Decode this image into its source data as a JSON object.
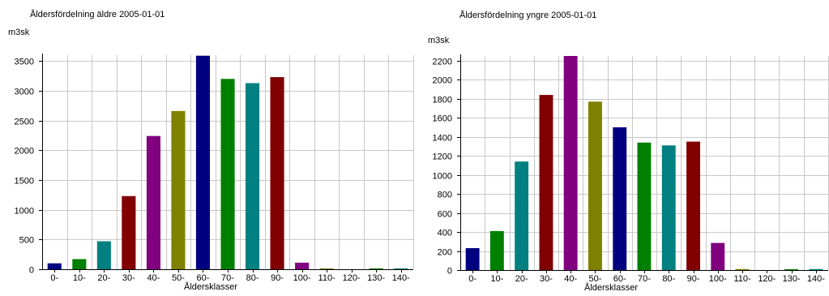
{
  "charts": [
    {
      "title": "Åldersfördelning äldre 2005-01-01",
      "unit": "m3sk",
      "xlabel": "Åldersklasser"
    },
    {
      "title": "Åldersfördelning yngre 2005-01-01",
      "unit": "m3sk",
      "xlabel": "Åldersklasser"
    }
  ],
  "chart_data": [
    {
      "type": "bar",
      "title": "Åldersfördelning äldre 2005-01-01",
      "xlabel": "Åldersklasser",
      "ylabel": "m3sk",
      "categories": [
        "0-",
        "10-",
        "20-",
        "30-",
        "40-",
        "50-",
        "60-",
        "70-",
        "80-",
        "90-",
        "100-",
        "110-",
        "120-",
        "130-",
        "140-"
      ],
      "values": [
        100,
        170,
        470,
        1230,
        2240,
        2660,
        3590,
        3200,
        3130,
        3230,
        110,
        10,
        0,
        5,
        10
      ],
      "ylim": [
        0,
        3600
      ],
      "yticks": [
        0,
        500,
        1000,
        1500,
        2000,
        2500,
        3000,
        3500
      ],
      "grid": true,
      "colors": [
        "#000080",
        "#008000",
        "#008080",
        "#800000",
        "#800080",
        "#808000",
        "#000080",
        "#008000",
        "#008080",
        "#800000",
        "#800080",
        "#808000",
        "#000080",
        "#008000",
        "#008080"
      ]
    },
    {
      "type": "bar",
      "title": "Åldersfördelning yngre 2005-01-01",
      "xlabel": "Åldersklasser",
      "ylabel": "m3sk",
      "categories": [
        "0-",
        "10-",
        "20-",
        "30-",
        "40-",
        "50-",
        "60-",
        "70-",
        "80-",
        "90-",
        "100-",
        "110-",
        "120-",
        "130-",
        "140-"
      ],
      "values": [
        230,
        410,
        1140,
        1840,
        2250,
        1770,
        1500,
        1340,
        1310,
        1350,
        285,
        10,
        0,
        5,
        10
      ],
      "ylim": [
        0,
        2250
      ],
      "yticks": [
        0,
        200,
        400,
        600,
        800,
        1000,
        1200,
        1400,
        1600,
        1800,
        2000,
        2200
      ],
      "grid": true,
      "colors": [
        "#000080",
        "#008000",
        "#008080",
        "#800000",
        "#800080",
        "#808000",
        "#000080",
        "#008000",
        "#008080",
        "#800000",
        "#800080",
        "#808000",
        "#000080",
        "#008000",
        "#008080"
      ]
    }
  ]
}
